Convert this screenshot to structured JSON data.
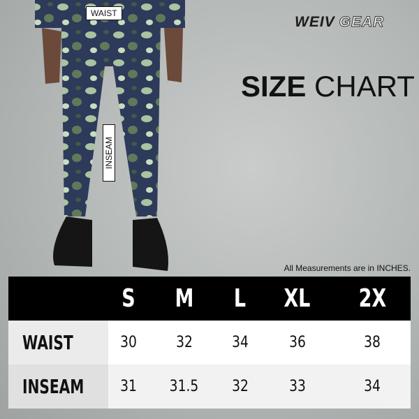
{
  "brand": {
    "name_bold": "WEIV",
    "name_outline": "GEAR"
  },
  "title": {
    "bold": "SIZE",
    "regular": "CHART"
  },
  "photo_labels": {
    "waist": "WAIST",
    "inseam": "INSEAM"
  },
  "note": "All Measurements are in INCHES.",
  "table": {
    "sizes": [
      "S",
      "M",
      "L",
      "XL",
      "2X"
    ],
    "rows": [
      {
        "label": "WAIST",
        "values": [
          "30",
          "32",
          "34",
          "36",
          "38"
        ]
      },
      {
        "label": "INSEAM",
        "values": [
          "31",
          "31.5",
          "32",
          "33",
          "34"
        ]
      }
    ]
  },
  "colors": {
    "header_bg": "#000000",
    "camo_dark": "#2d3a5a",
    "camo_light": "#a8c4a0"
  }
}
